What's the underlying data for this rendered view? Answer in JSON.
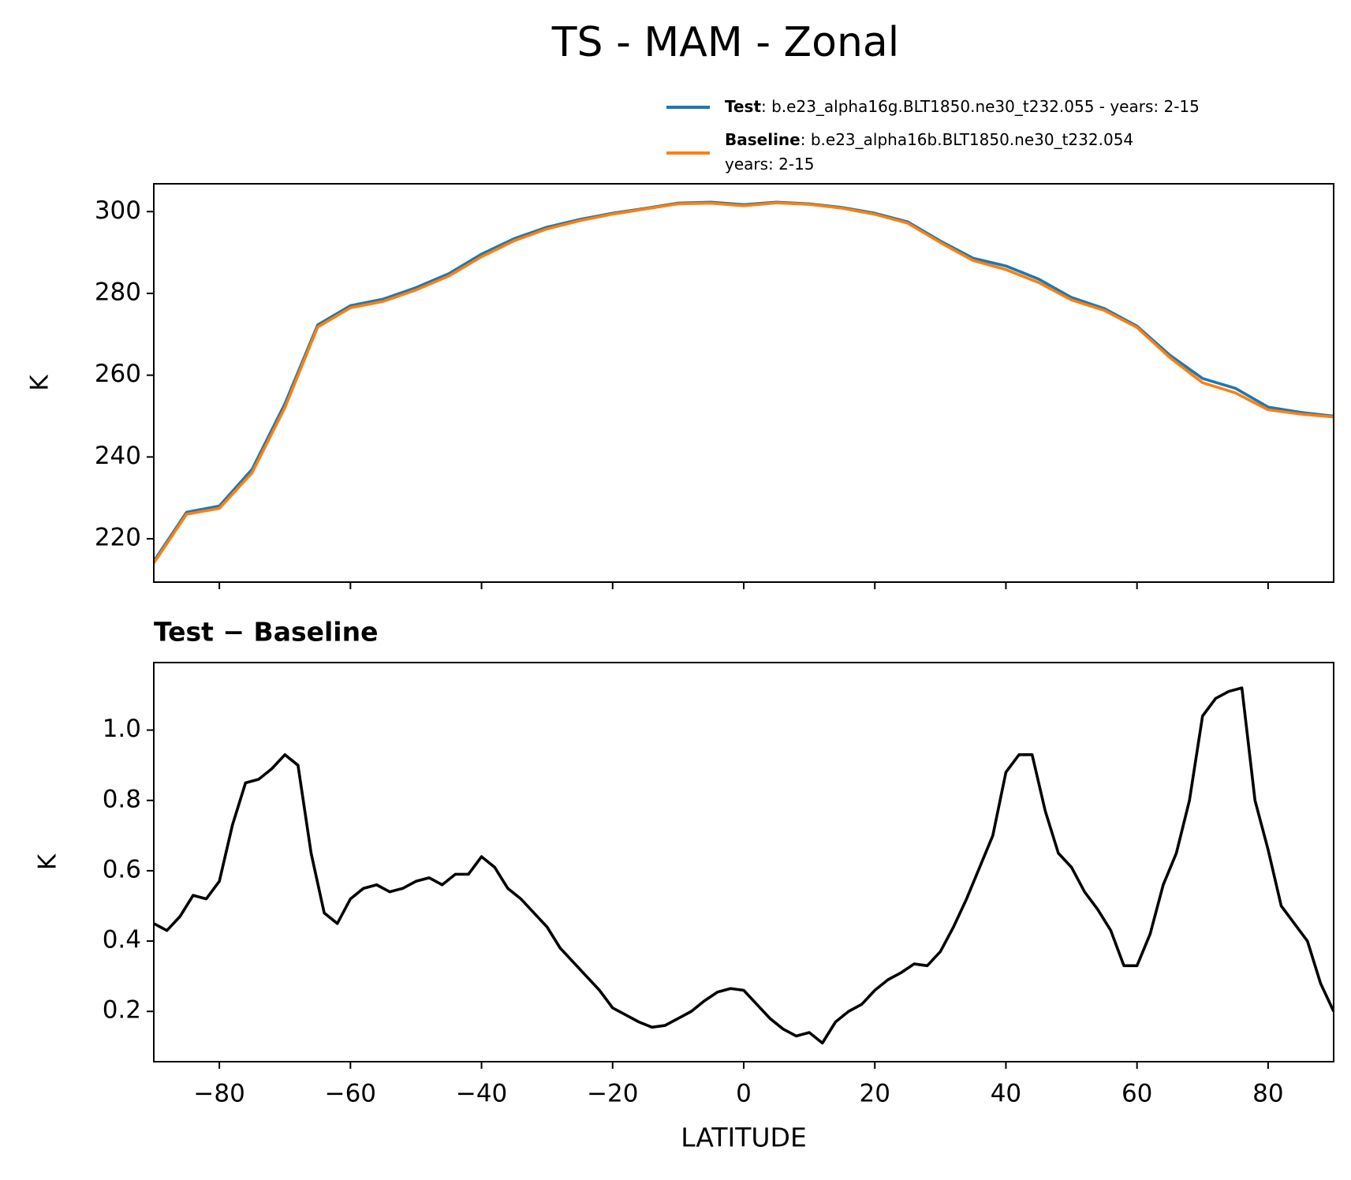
{
  "title": "TS - MAM - Zonal",
  "chart_data": [
    {
      "type": "line",
      "ylabel": "K",
      "xlim": [
        -90,
        90
      ],
      "ylim": [
        209.4,
        306.8
      ],
      "xticks": [
        -80,
        -60,
        -40,
        -20,
        0,
        20,
        40,
        60,
        80
      ],
      "yticks": [
        220,
        240,
        260,
        280,
        300
      ],
      "x": [
        -90,
        -85,
        -80,
        -75,
        -70,
        -65,
        -60,
        -55,
        -50,
        -45,
        -40,
        -35,
        -30,
        -25,
        -20,
        -15,
        -10,
        -5,
        0,
        5,
        10,
        15,
        20,
        25,
        30,
        35,
        40,
        45,
        50,
        55,
        60,
        65,
        70,
        75,
        80,
        85,
        90
      ],
      "series": [
        {
          "name": "Test",
          "label": ": b.e23_alpha16g.BLT1850.ne30_t232.055 - years: 2-15",
          "color": "#1f77b4",
          "values": [
            214.5,
            226.5,
            228,
            237,
            253,
            272.3,
            277,
            278.6,
            281.4,
            284.8,
            289.6,
            293.4,
            296.2,
            298.1,
            299.6,
            300.8,
            302.1,
            302.3,
            301.7,
            302.3,
            301.9,
            301,
            299.6,
            297.5,
            292.8,
            288.6,
            286.7,
            283.5,
            279,
            276.3,
            272,
            264.9,
            259.2,
            256.8,
            252.2,
            250.9,
            250
          ]
        },
        {
          "name": "Baseline",
          "label": [
            ": b.e23_alpha16b.BLT1850.ne30_t232.054",
            "years: 2-15"
          ],
          "color": "#ff7f0e",
          "values": [
            214.05,
            226.0,
            227.43,
            236.14,
            252.07,
            271.75,
            276.48,
            278.05,
            280.83,
            284.23,
            288.96,
            292.87,
            295.76,
            297.78,
            299.39,
            300.64,
            301.92,
            302.06,
            301.44,
            302.14,
            301.76,
            300.82,
            299.34,
            297.18,
            292.43,
            288.04,
            285.82,
            282.65,
            278.39,
            275.84,
            271.67,
            264.3,
            258.16,
            255.68,
            251.54,
            250.48,
            249.8
          ]
        }
      ]
    },
    {
      "type": "line",
      "title": "Test − Baseline",
      "xlabel": "LATITUDE",
      "ylabel": "K",
      "xlim": [
        -90,
        90
      ],
      "ylim": [
        0.057,
        1.192
      ],
      "xticks": [
        {
          "value": -80,
          "label": "−80"
        },
        {
          "value": -60,
          "label": "−60"
        },
        {
          "value": -40,
          "label": "−40"
        },
        {
          "value": -20,
          "label": "−20"
        },
        0,
        20,
        40,
        60,
        80
      ],
      "yticks": [
        0.2,
        0.4,
        0.6,
        0.8,
        {
          "value": 1,
          "label": "1.0"
        }
      ],
      "x": [
        -90,
        -88,
        -86,
        -84,
        -82,
        -80,
        -78,
        -76,
        -74,
        -72,
        -70,
        -68,
        -66,
        -64,
        -62,
        -60,
        -58,
        -56,
        -54,
        -52,
        -50,
        -48,
        -46,
        -44,
        -42,
        -40,
        -38,
        -36,
        -34,
        -32,
        -30,
        -28,
        -26,
        -24,
        -22,
        -20,
        -18,
        -16,
        -14,
        -12,
        -10,
        -8,
        -6,
        -4,
        -2,
        0,
        2,
        4,
        6,
        8,
        10,
        12,
        14,
        16,
        18,
        20,
        22,
        24,
        26,
        28,
        30,
        32,
        34,
        36,
        38,
        40,
        42,
        44,
        46,
        48,
        50,
        52,
        54,
        56,
        58,
        60,
        62,
        64,
        66,
        68,
        70,
        72,
        74,
        76,
        78,
        80,
        82,
        84,
        86,
        88,
        90
      ],
      "series": [
        {
          "color": "#000000",
          "values": [
            0.45,
            0.43,
            0.47,
            0.53,
            0.52,
            0.57,
            0.73,
            0.85,
            0.86,
            0.89,
            0.93,
            0.9,
            0.65,
            0.48,
            0.45,
            0.52,
            0.55,
            0.56,
            0.54,
            0.55,
            0.57,
            0.58,
            0.56,
            0.59,
            0.59,
            0.64,
            0.61,
            0.55,
            0.52,
            0.48,
            0.44,
            0.38,
            0.34,
            0.3,
            0.26,
            0.21,
            0.19,
            0.17,
            0.155,
            0.16,
            0.18,
            0.2,
            0.23,
            0.255,
            0.265,
            0.26,
            0.22,
            0.18,
            0.15,
            0.13,
            0.14,
            0.11,
            0.17,
            0.2,
            0.22,
            0.26,
            0.29,
            0.31,
            0.335,
            0.33,
            0.37,
            0.44,
            0.52,
            0.61,
            0.7,
            0.88,
            0.93,
            0.93,
            0.77,
            0.65,
            0.61,
            0.54,
            0.49,
            0.43,
            0.33,
            0.33,
            0.42,
            0.56,
            0.65,
            0.8,
            1.04,
            1.09,
            1.11,
            1.12,
            0.8,
            0.66,
            0.5,
            0.45,
            0.4,
            0.28,
            0.2
          ]
        }
      ]
    }
  ]
}
